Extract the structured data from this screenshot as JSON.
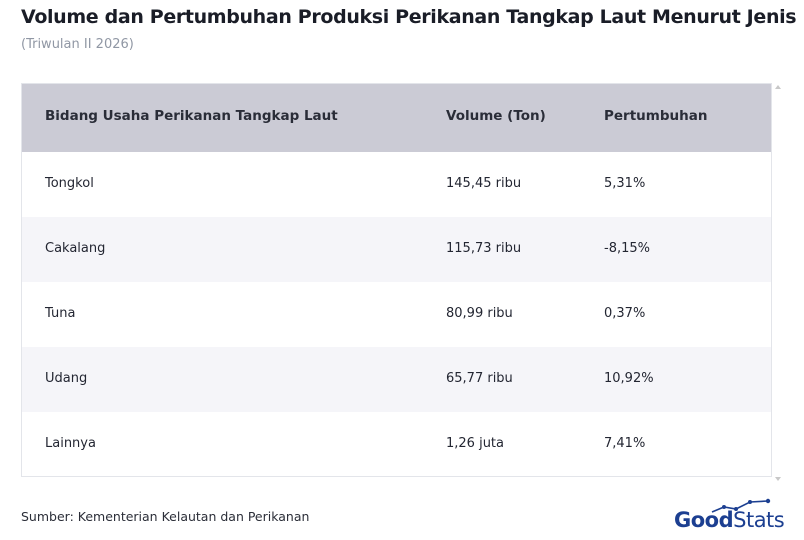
{
  "header": {
    "title": "Volume dan Pertumbuhan Produksi Perikanan Tangkap Laut Menurut Jenis",
    "subtitle": "(Triwulan II 2026)"
  },
  "table": {
    "columns": [
      "Bidang Usaha Perikanan Tangkap Laut",
      "Volume (Ton)",
      "Pertumbuhan"
    ],
    "rows": [
      [
        "Tongkol",
        "145,45 ribu",
        "5,31%"
      ],
      [
        "Cakalang",
        "115,73 ribu",
        "-8,15%"
      ],
      [
        "Tuna",
        "80,99 ribu",
        "0,37%"
      ],
      [
        "Udang",
        "65,77 ribu",
        "10,92%"
      ],
      [
        "Lainnya",
        "1,26 juta",
        "7,41%"
      ]
    ]
  },
  "footer": {
    "source": "Sumber: Kementerian Kelautan dan Perikanan",
    "logo_good": "Good",
    "logo_stats": "Stats"
  },
  "colors": {
    "header_bg": "#cbcbd5",
    "alt_row_bg": "#f5f5f9",
    "brand": "#1c3f91"
  }
}
